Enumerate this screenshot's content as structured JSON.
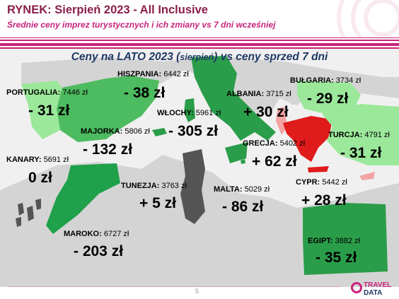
{
  "header": {
    "title": "RYNEK: Sierpień 2023 - All Inclusive",
    "subtitle": "Średnie ceny imprez turystycznych i ich zmiany vs 7 dni wcześniej"
  },
  "map_title": {
    "main": "Ceny na LATO 2023 (",
    "small": "sierpień",
    "end": ") vs ceny sprzed 7 dni"
  },
  "destinations": [
    {
      "name": "HISZPANIA:",
      "price": "6442 zł",
      "change": "- 38 zł",
      "color": "#4dbb5f"
    },
    {
      "name": "PORTUGALIA:",
      "price": "7446 zł",
      "change": "- 31 zł",
      "color": "#9be89b"
    },
    {
      "name": "WŁOCHY:",
      "price": "5961 zł",
      "change": "- 305 zł",
      "color": "#2a9d4a"
    },
    {
      "name": "MAJORKA:",
      "price": "5806 zł",
      "change": "- 132 zł",
      "color": "#2a9d4a"
    },
    {
      "name": "ALBANIA:",
      "price": "3715 zł",
      "change": "+ 30 zł",
      "color": "#f4a3a3"
    },
    {
      "name": "BUŁGARIA:",
      "price": "3734 zł",
      "change": "- 29 zł",
      "color": "#9be89b"
    },
    {
      "name": "TURCJA:",
      "price": "4791 zł",
      "change": "- 31 zł",
      "color": "#9be89b"
    },
    {
      "name": "GRECJA:",
      "price": "5402 zł",
      "change": "+ 62 zł",
      "color": "#e01b1b"
    },
    {
      "name": "KANARY:",
      "price": "5691 zł",
      "change": "0 zł",
      "color": "#555555"
    },
    {
      "name": "TUNEZJA:",
      "price": "3763 zł",
      "change": "+ 5 zł",
      "color": "#555555"
    },
    {
      "name": "MALTA:",
      "price": "5029 zł",
      "change": "- 86 zł",
      "color": "#2a9d4a"
    },
    {
      "name": "CYPR:",
      "price": "5442 zł",
      "change": "+ 28 zł",
      "color": "#f4a3a3"
    },
    {
      "name": "MAROKO:",
      "price": "6727 zł",
      "change": "- 203 zł",
      "color": "#1fa04a"
    },
    {
      "name": "EGIPT:",
      "price": "3882 zł",
      "change": "- 35 zł",
      "color": "#2a9d4a"
    }
  ],
  "footer": {
    "page_number": "5",
    "logo_line1": "TRAVEL",
    "logo_line2": "DATA"
  },
  "colors": {
    "accent": "#c7237a",
    "title": "#8a1f4a",
    "map_title": "#1f3864",
    "land": "#d4d4d4",
    "sea": "#f0f0f0"
  }
}
